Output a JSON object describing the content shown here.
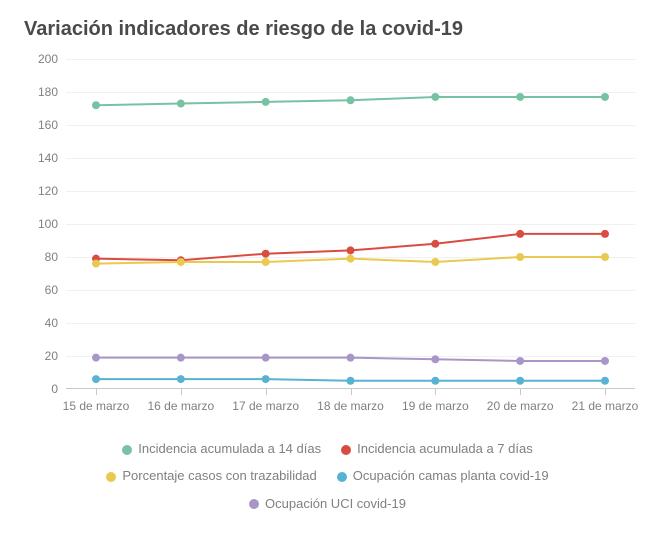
{
  "title": "Variación indicadores de riesgo de la covid-19",
  "chart": {
    "type": "line",
    "background_color": "#ffffff",
    "grid_color": "#f0f0f0",
    "axis_color": "#c9c9c9",
    "label_color": "#808080",
    "title_color": "#4a4a4a",
    "title_fontsize": 20,
    "label_fontsize": 12,
    "legend_fontsize": 13,
    "categories": [
      "15 de marzo",
      "16 de marzo",
      "17 de marzo",
      "18 de marzo",
      "19 de marzo",
      "20 de marzo",
      "21 de marzo"
    ],
    "ylim": [
      0,
      200
    ],
    "ytick_step": 20,
    "line_width": 2,
    "marker_radius": 4,
    "series": [
      {
        "name": "Incidencia acumulada a 14 días",
        "color": "#78c2a4",
        "values": [
          172,
          173,
          174,
          175,
          177,
          177,
          177
        ]
      },
      {
        "name": "Incidencia acumulada a 7 días",
        "color": "#d94c41",
        "values": [
          79,
          78,
          82,
          84,
          88,
          94,
          94
        ]
      },
      {
        "name": "Porcentaje casos con trazabilidad",
        "color": "#e9c94e",
        "values": [
          76,
          77,
          77,
          79,
          77,
          80,
          80
        ]
      },
      {
        "name": "Ocupación camas planta covid-19",
        "color": "#58b3d3",
        "values": [
          6,
          6,
          6,
          5,
          5,
          5,
          5
        ]
      },
      {
        "name": "Ocupación UCI covid-19",
        "color": "#a896c8",
        "values": [
          19,
          19,
          19,
          19,
          18,
          17,
          17
        ]
      }
    ]
  }
}
